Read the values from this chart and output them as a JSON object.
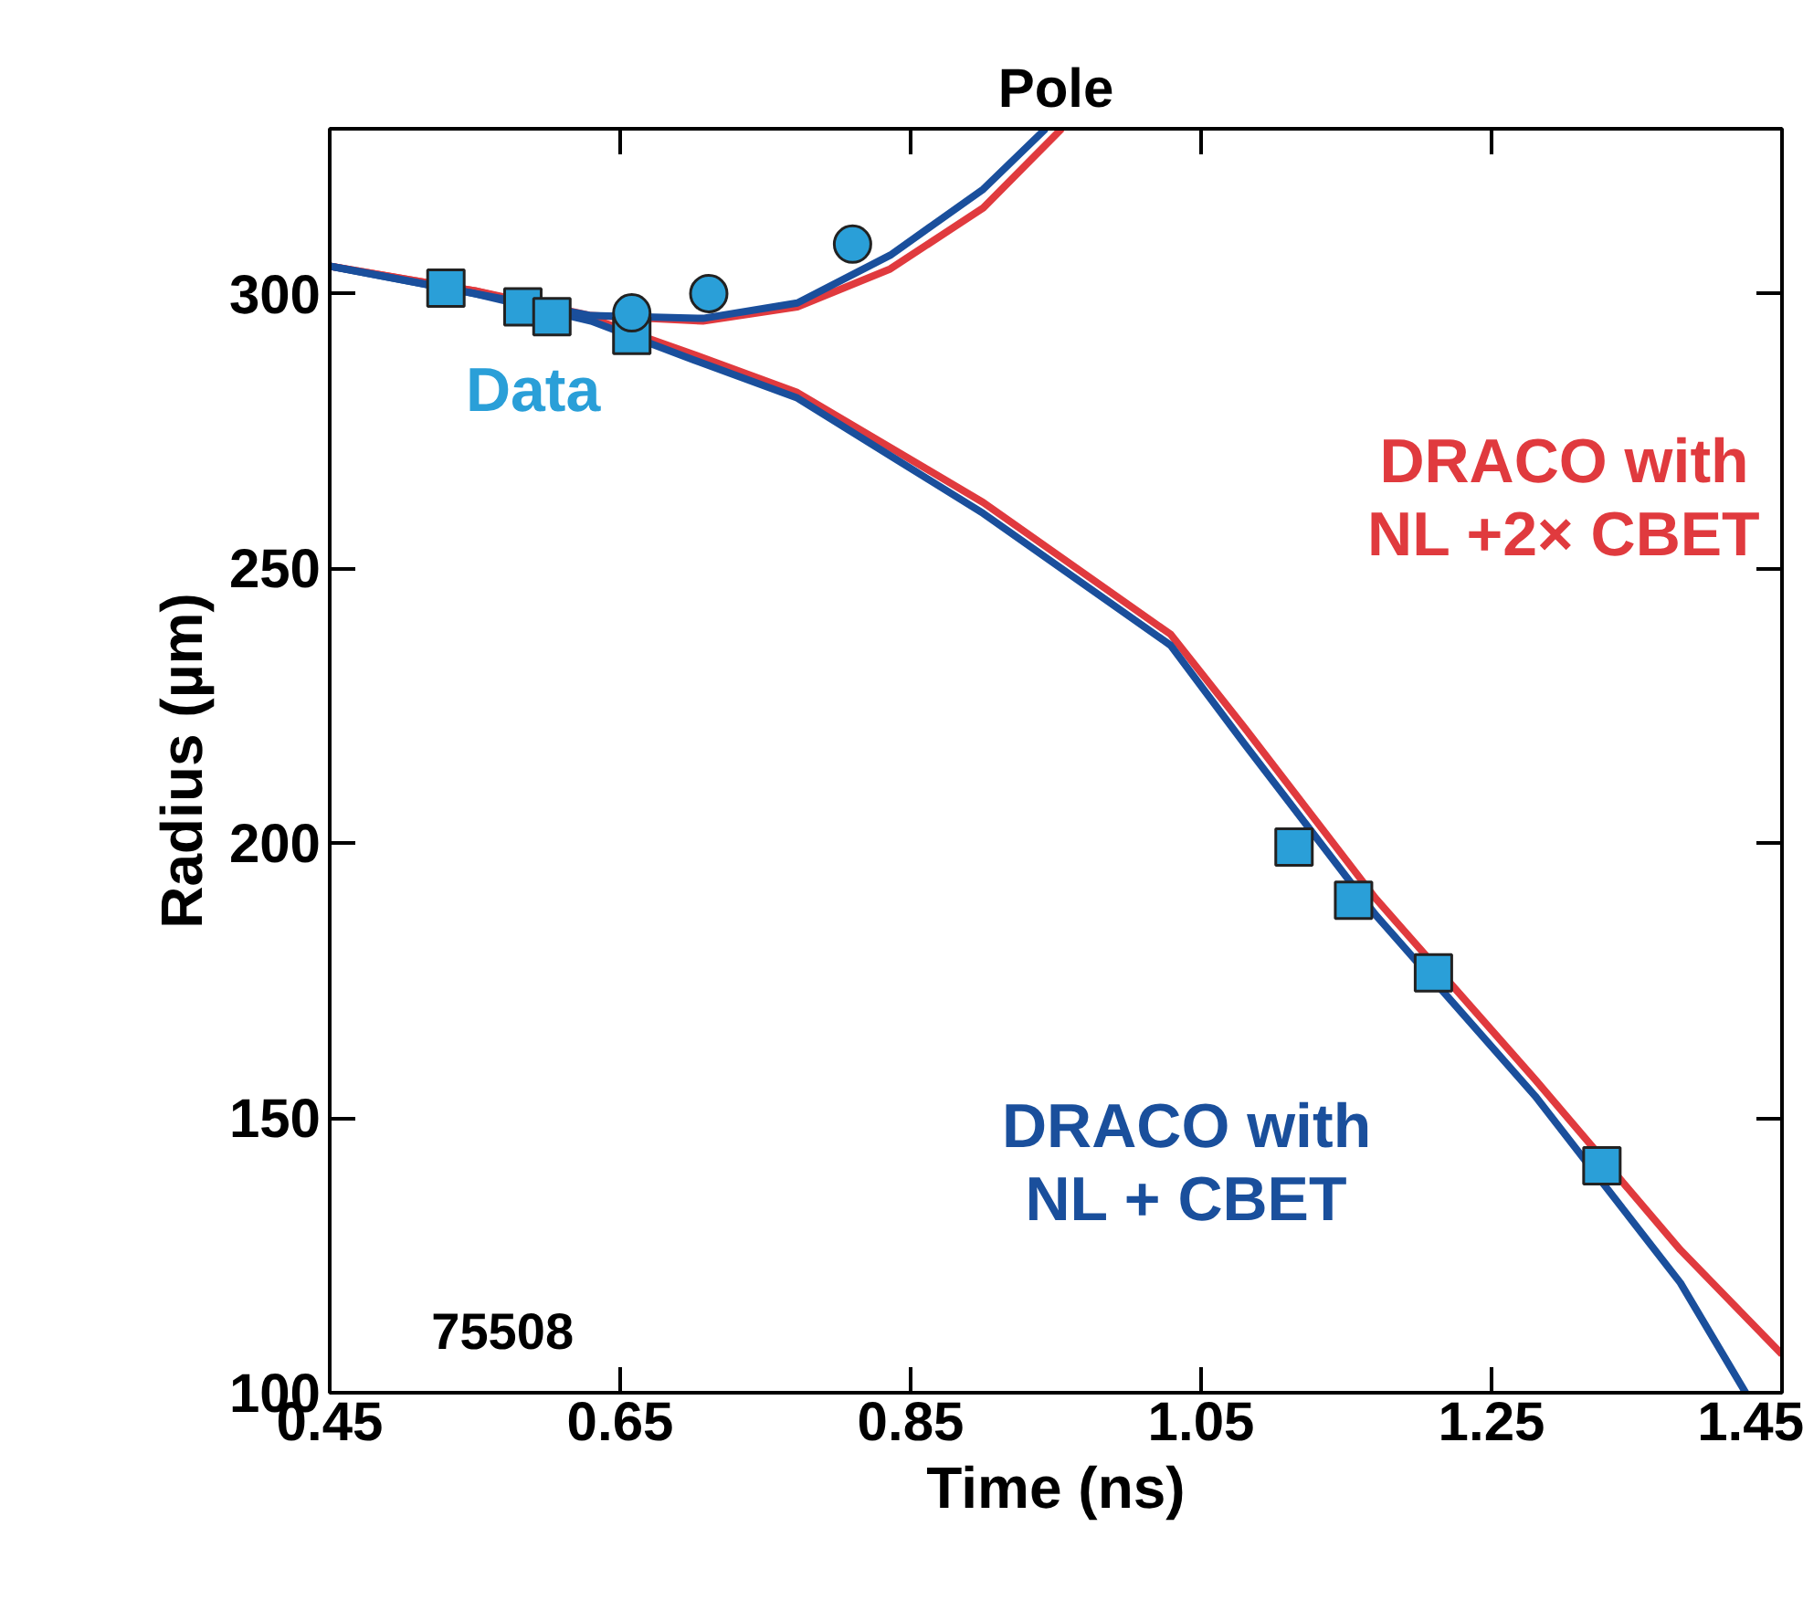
{
  "chart_data": {
    "type": "line",
    "title": "Pole",
    "xlabel": "Time (ns)",
    "ylabel": "Radius (µm)",
    "xlim": [
      0.45,
      1.45
    ],
    "ylim": [
      100,
      330
    ],
    "xticks": [
      0.45,
      0.65,
      0.85,
      1.05,
      1.25,
      1.45
    ],
    "yticks": [
      100,
      150,
      200,
      250,
      300
    ],
    "grid": false,
    "annotations": [
      "75508"
    ],
    "series": [
      {
        "name": "DRACO with NL +2× CBET",
        "color": "#e03a3e",
        "x": [
          0.45,
          0.55,
          0.63,
          0.7,
          0.772,
          0.9,
          1.029,
          1.08,
          1.17,
          1.28,
          1.38,
          1.45
        ],
        "values": [
          305,
          300.5,
          295.5,
          289,
          282,
          262,
          238,
          221,
          190,
          157,
          126,
          107
        ]
      },
      {
        "name": null,
        "color": "#e03a3e",
        "x": [
          0.45,
          0.55,
          0.63,
          0.707,
          0.772,
          0.836,
          0.9,
          0.954
        ],
        "values": [
          305,
          300.5,
          296,
          295,
          297.6,
          304.5,
          315.6,
          330
        ]
      },
      {
        "name": "DRACO with NL + CBET",
        "color": "#1a4f9c",
        "x": [
          0.45,
          0.55,
          0.63,
          0.7,
          0.772,
          0.9,
          1.029,
          1.08,
          1.17,
          1.28,
          1.38,
          1.425
        ],
        "values": [
          305,
          300,
          295,
          288,
          281,
          260,
          236,
          218,
          187,
          154,
          120,
          100
        ]
      },
      {
        "name": null,
        "color": "#1a4f9c",
        "x": [
          0.45,
          0.55,
          0.63,
          0.707,
          0.772,
          0.836,
          0.9,
          0.943
        ],
        "values": [
          305,
          300,
          296,
          295.5,
          298.3,
          307,
          319,
          330
        ]
      },
      {
        "name": "Data",
        "type": "scatter",
        "marker": "square",
        "color": "#2a9fd8",
        "x": [
          0.53,
          0.583,
          0.603,
          0.658,
          1.114,
          1.155,
          1.21,
          1.326
        ],
        "values": [
          301,
          297.6,
          295.8,
          292.4,
          199.3,
          189.6,
          176.4,
          141.3
        ]
      },
      {
        "name": null,
        "type": "scatter",
        "marker": "circle",
        "color": "#2a9fd8",
        "x": [
          0.658,
          0.711,
          0.81
        ],
        "values": [
          296.5,
          300,
          309
        ]
      }
    ]
  }
}
